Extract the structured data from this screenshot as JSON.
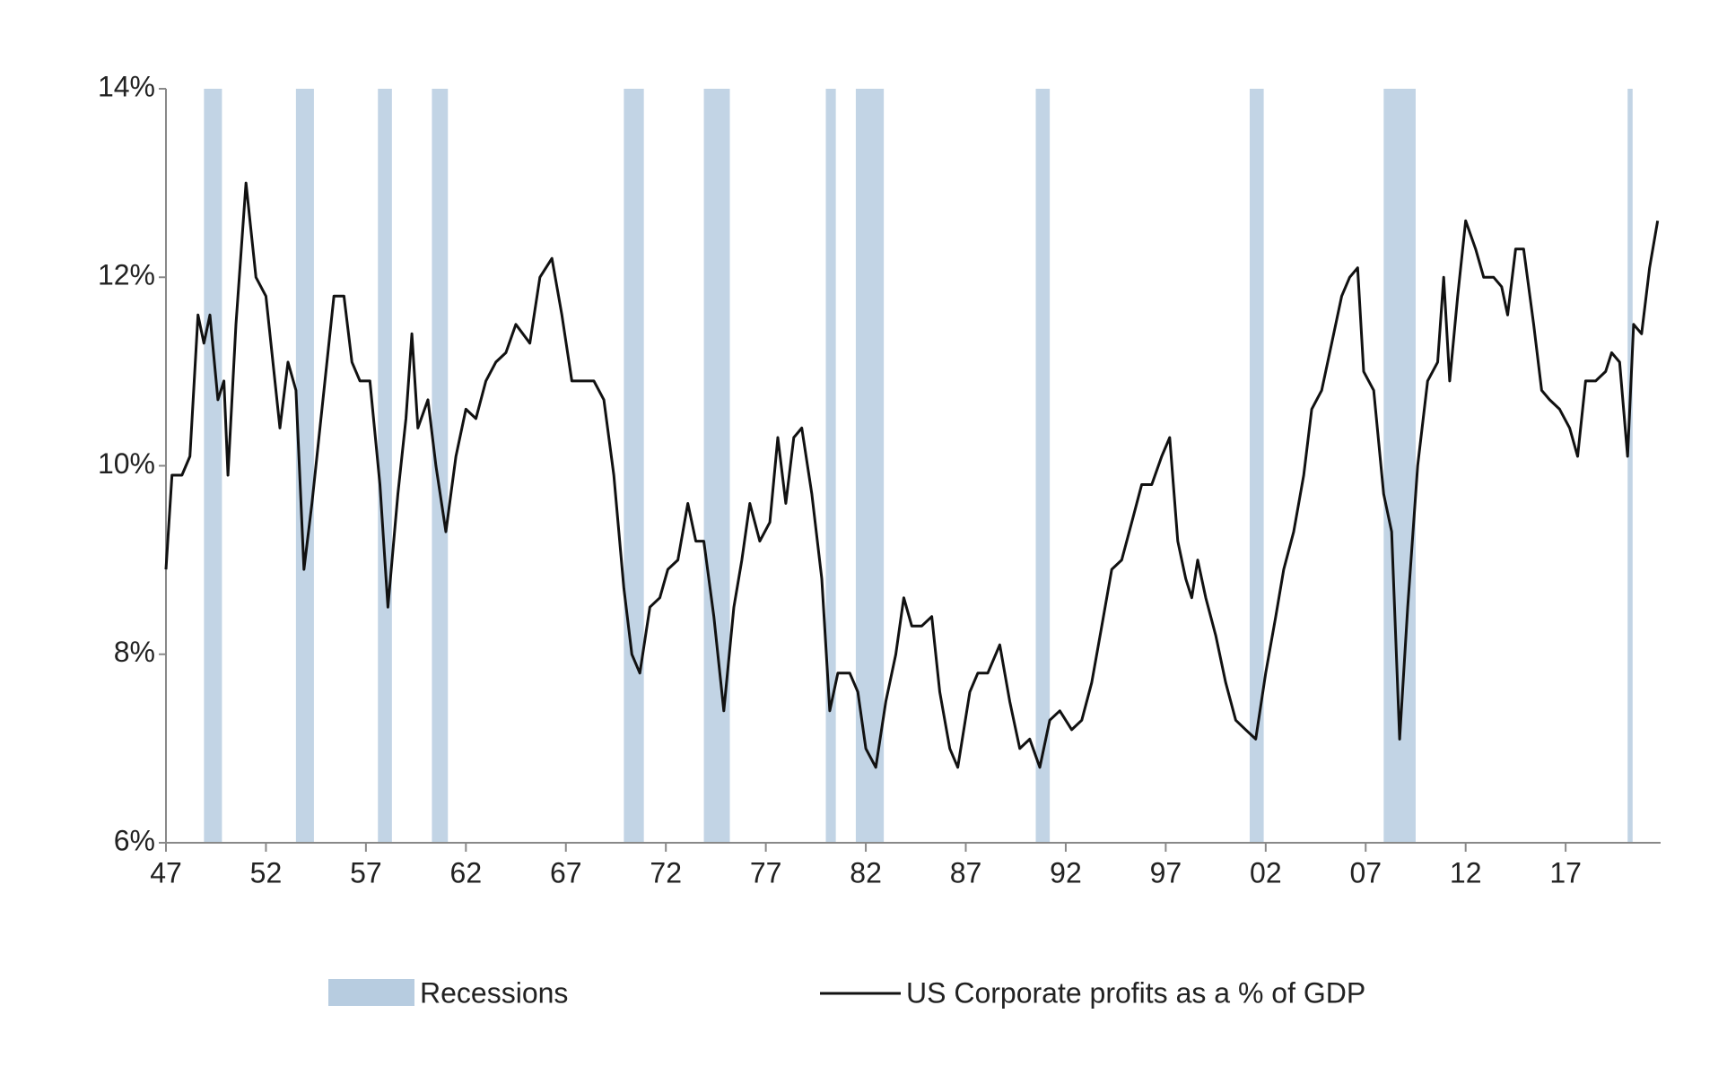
{
  "chart_data": {
    "type": "line",
    "xlim": [
      1947,
      2021.75
    ],
    "ylim": [
      6,
      14
    ],
    "xticks": [
      {
        "value": 1947,
        "label": "47"
      },
      {
        "value": 1952,
        "label": "52"
      },
      {
        "value": 1957,
        "label": "57"
      },
      {
        "value": 1962,
        "label": "62"
      },
      {
        "value": 1967,
        "label": "67"
      },
      {
        "value": 1972,
        "label": "72"
      },
      {
        "value": 1977,
        "label": "77"
      },
      {
        "value": 1982,
        "label": "82"
      },
      {
        "value": 1987,
        "label": "87"
      },
      {
        "value": 1992,
        "label": "92"
      },
      {
        "value": 1997,
        "label": "97"
      },
      {
        "value": 2002,
        "label": "02"
      },
      {
        "value": 2007,
        "label": "07"
      },
      {
        "value": 2012,
        "label": "12"
      },
      {
        "value": 2017,
        "label": "17"
      }
    ],
    "yticks": [
      {
        "value": 6,
        "label": "6%"
      },
      {
        "value": 8,
        "label": "8%"
      },
      {
        "value": 10,
        "label": "10%"
      },
      {
        "value": 12,
        "label": "12%"
      },
      {
        "value": 14,
        "label": "14%"
      }
    ],
    "bands": {
      "name": "Recessions",
      "color": "#b7cce0",
      "ranges": [
        [
          1948.9,
          1949.8
        ],
        [
          1953.5,
          1954.4
        ],
        [
          1957.6,
          1958.3
        ],
        [
          1960.3,
          1961.1
        ],
        [
          1969.9,
          1970.9
        ],
        [
          1973.9,
          1975.2
        ],
        [
          1980.0,
          1980.5
        ],
        [
          1981.5,
          1982.9
        ],
        [
          1990.5,
          1991.2
        ],
        [
          2001.2,
          2001.9
        ],
        [
          2007.9,
          2009.5
        ],
        [
          2020.1,
          2020.35
        ]
      ]
    },
    "series": [
      {
        "name": "US Corporate profits as a % of GDP",
        "color": "#111111",
        "x": [
          1947.0,
          1947.3,
          1947.8,
          1948.2,
          1948.6,
          1948.9,
          1949.2,
          1949.6,
          1949.9,
          1950.1,
          1950.5,
          1951.0,
          1951.5,
          1952.0,
          1952.3,
          1952.7,
          1953.1,
          1953.5,
          1953.9,
          1954.3,
          1954.9,
          1955.4,
          1955.9,
          1956.3,
          1956.7,
          1957.2,
          1957.7,
          1958.1,
          1958.6,
          1959.0,
          1959.3,
          1959.6,
          1960.1,
          1960.5,
          1961.0,
          1961.5,
          1962.0,
          1962.5,
          1963.0,
          1963.5,
          1964.0,
          1964.5,
          1965.2,
          1965.7,
          1966.3,
          1966.8,
          1967.3,
          1967.8,
          1968.4,
          1968.9,
          1969.4,
          1969.9,
          1970.3,
          1970.7,
          1971.2,
          1971.7,
          1972.1,
          1972.6,
          1973.1,
          1973.5,
          1973.9,
          1974.4,
          1974.9,
          1975.4,
          1975.8,
          1976.2,
          1976.7,
          1977.2,
          1977.6,
          1978.0,
          1978.4,
          1978.8,
          1979.3,
          1979.8,
          1980.2,
          1980.6,
          1981.2,
          1981.6,
          1982.0,
          1982.5,
          1983.0,
          1983.5,
          1983.9,
          1984.3,
          1984.8,
          1985.3,
          1985.7,
          1986.2,
          1986.6,
          1987.2,
          1987.6,
          1988.1,
          1988.7,
          1989.2,
          1989.7,
          1990.2,
          1990.7,
          1991.2,
          1991.7,
          1992.3,
          1992.8,
          1993.3,
          1993.8,
          1994.3,
          1994.8,
          1995.3,
          1995.8,
          1996.3,
          1996.8,
          1997.2,
          1997.6,
          1998.0,
          1998.3,
          1998.6,
          1999.0,
          1999.5,
          2000.0,
          2000.5,
          2001.0,
          2001.5,
          2002.0,
          2002.5,
          2002.9,
          2003.4,
          2003.9,
          2004.3,
          2004.8,
          2005.3,
          2005.8,
          2006.2,
          2006.6,
          2006.9,
          2007.4,
          2007.9,
          2008.3,
          2008.7,
          2009.1,
          2009.6,
          2010.1,
          2010.6,
          2010.9,
          2011.2,
          2011.6,
          2012.0,
          2012.5,
          2012.9,
          2013.4,
          2013.8,
          2014.1,
          2014.5,
          2014.9,
          2015.4,
          2015.8,
          2016.2,
          2016.7,
          2017.2,
          2017.6,
          2018.0,
          2018.5,
          2019.0,
          2019.3,
          2019.7,
          2020.1,
          2020.4,
          2020.8,
          2021.2,
          2021.6
        ],
        "values": [
          8.9,
          9.9,
          9.9,
          10.1,
          11.6,
          11.3,
          11.6,
          10.7,
          10.9,
          9.9,
          11.5,
          13.0,
          12.0,
          11.8,
          11.2,
          10.4,
          11.1,
          10.8,
          8.9,
          9.6,
          10.8,
          11.8,
          11.8,
          11.1,
          10.9,
          10.9,
          9.8,
          8.5,
          9.7,
          10.5,
          11.4,
          10.4,
          10.7,
          10.0,
          9.3,
          10.1,
          10.6,
          10.5,
          10.9,
          11.1,
          11.2,
          11.5,
          11.3,
          12.0,
          12.2,
          11.6,
          10.9,
          10.9,
          10.9,
          10.7,
          9.9,
          8.7,
          8.0,
          7.8,
          8.5,
          8.6,
          8.9,
          9.0,
          9.6,
          9.2,
          9.2,
          8.4,
          7.4,
          8.5,
          9.0,
          9.6,
          9.2,
          9.4,
          10.3,
          9.6,
          10.3,
          10.4,
          9.7,
          8.8,
          7.4,
          7.8,
          7.8,
          7.6,
          7.0,
          6.8,
          7.5,
          8.0,
          8.6,
          8.3,
          8.3,
          8.4,
          7.6,
          7.0,
          6.8,
          7.6,
          7.8,
          7.8,
          8.1,
          7.5,
          7.0,
          7.1,
          6.8,
          7.3,
          7.4,
          7.2,
          7.3,
          7.7,
          8.3,
          8.9,
          9.0,
          9.4,
          9.8,
          9.8,
          10.1,
          10.3,
          9.2,
          8.8,
          8.6,
          9.0,
          8.6,
          8.2,
          7.7,
          7.3,
          7.2,
          7.1,
          7.8,
          8.4,
          8.9,
          9.3,
          9.9,
          10.6,
          10.8,
          11.3,
          11.8,
          12.0,
          12.1,
          11.0,
          10.8,
          9.7,
          9.3,
          7.1,
          8.5,
          10.0,
          10.9,
          11.1,
          12.0,
          10.9,
          11.8,
          12.6,
          12.3,
          12.0,
          12.0,
          11.9,
          11.6,
          12.3,
          12.3,
          11.5,
          10.8,
          10.7,
          10.6,
          10.4,
          10.1,
          10.9,
          10.9,
          11.0,
          11.2,
          11.1,
          10.1,
          11.5,
          11.4,
          12.1,
          12.6
        ]
      }
    ]
  }
}
